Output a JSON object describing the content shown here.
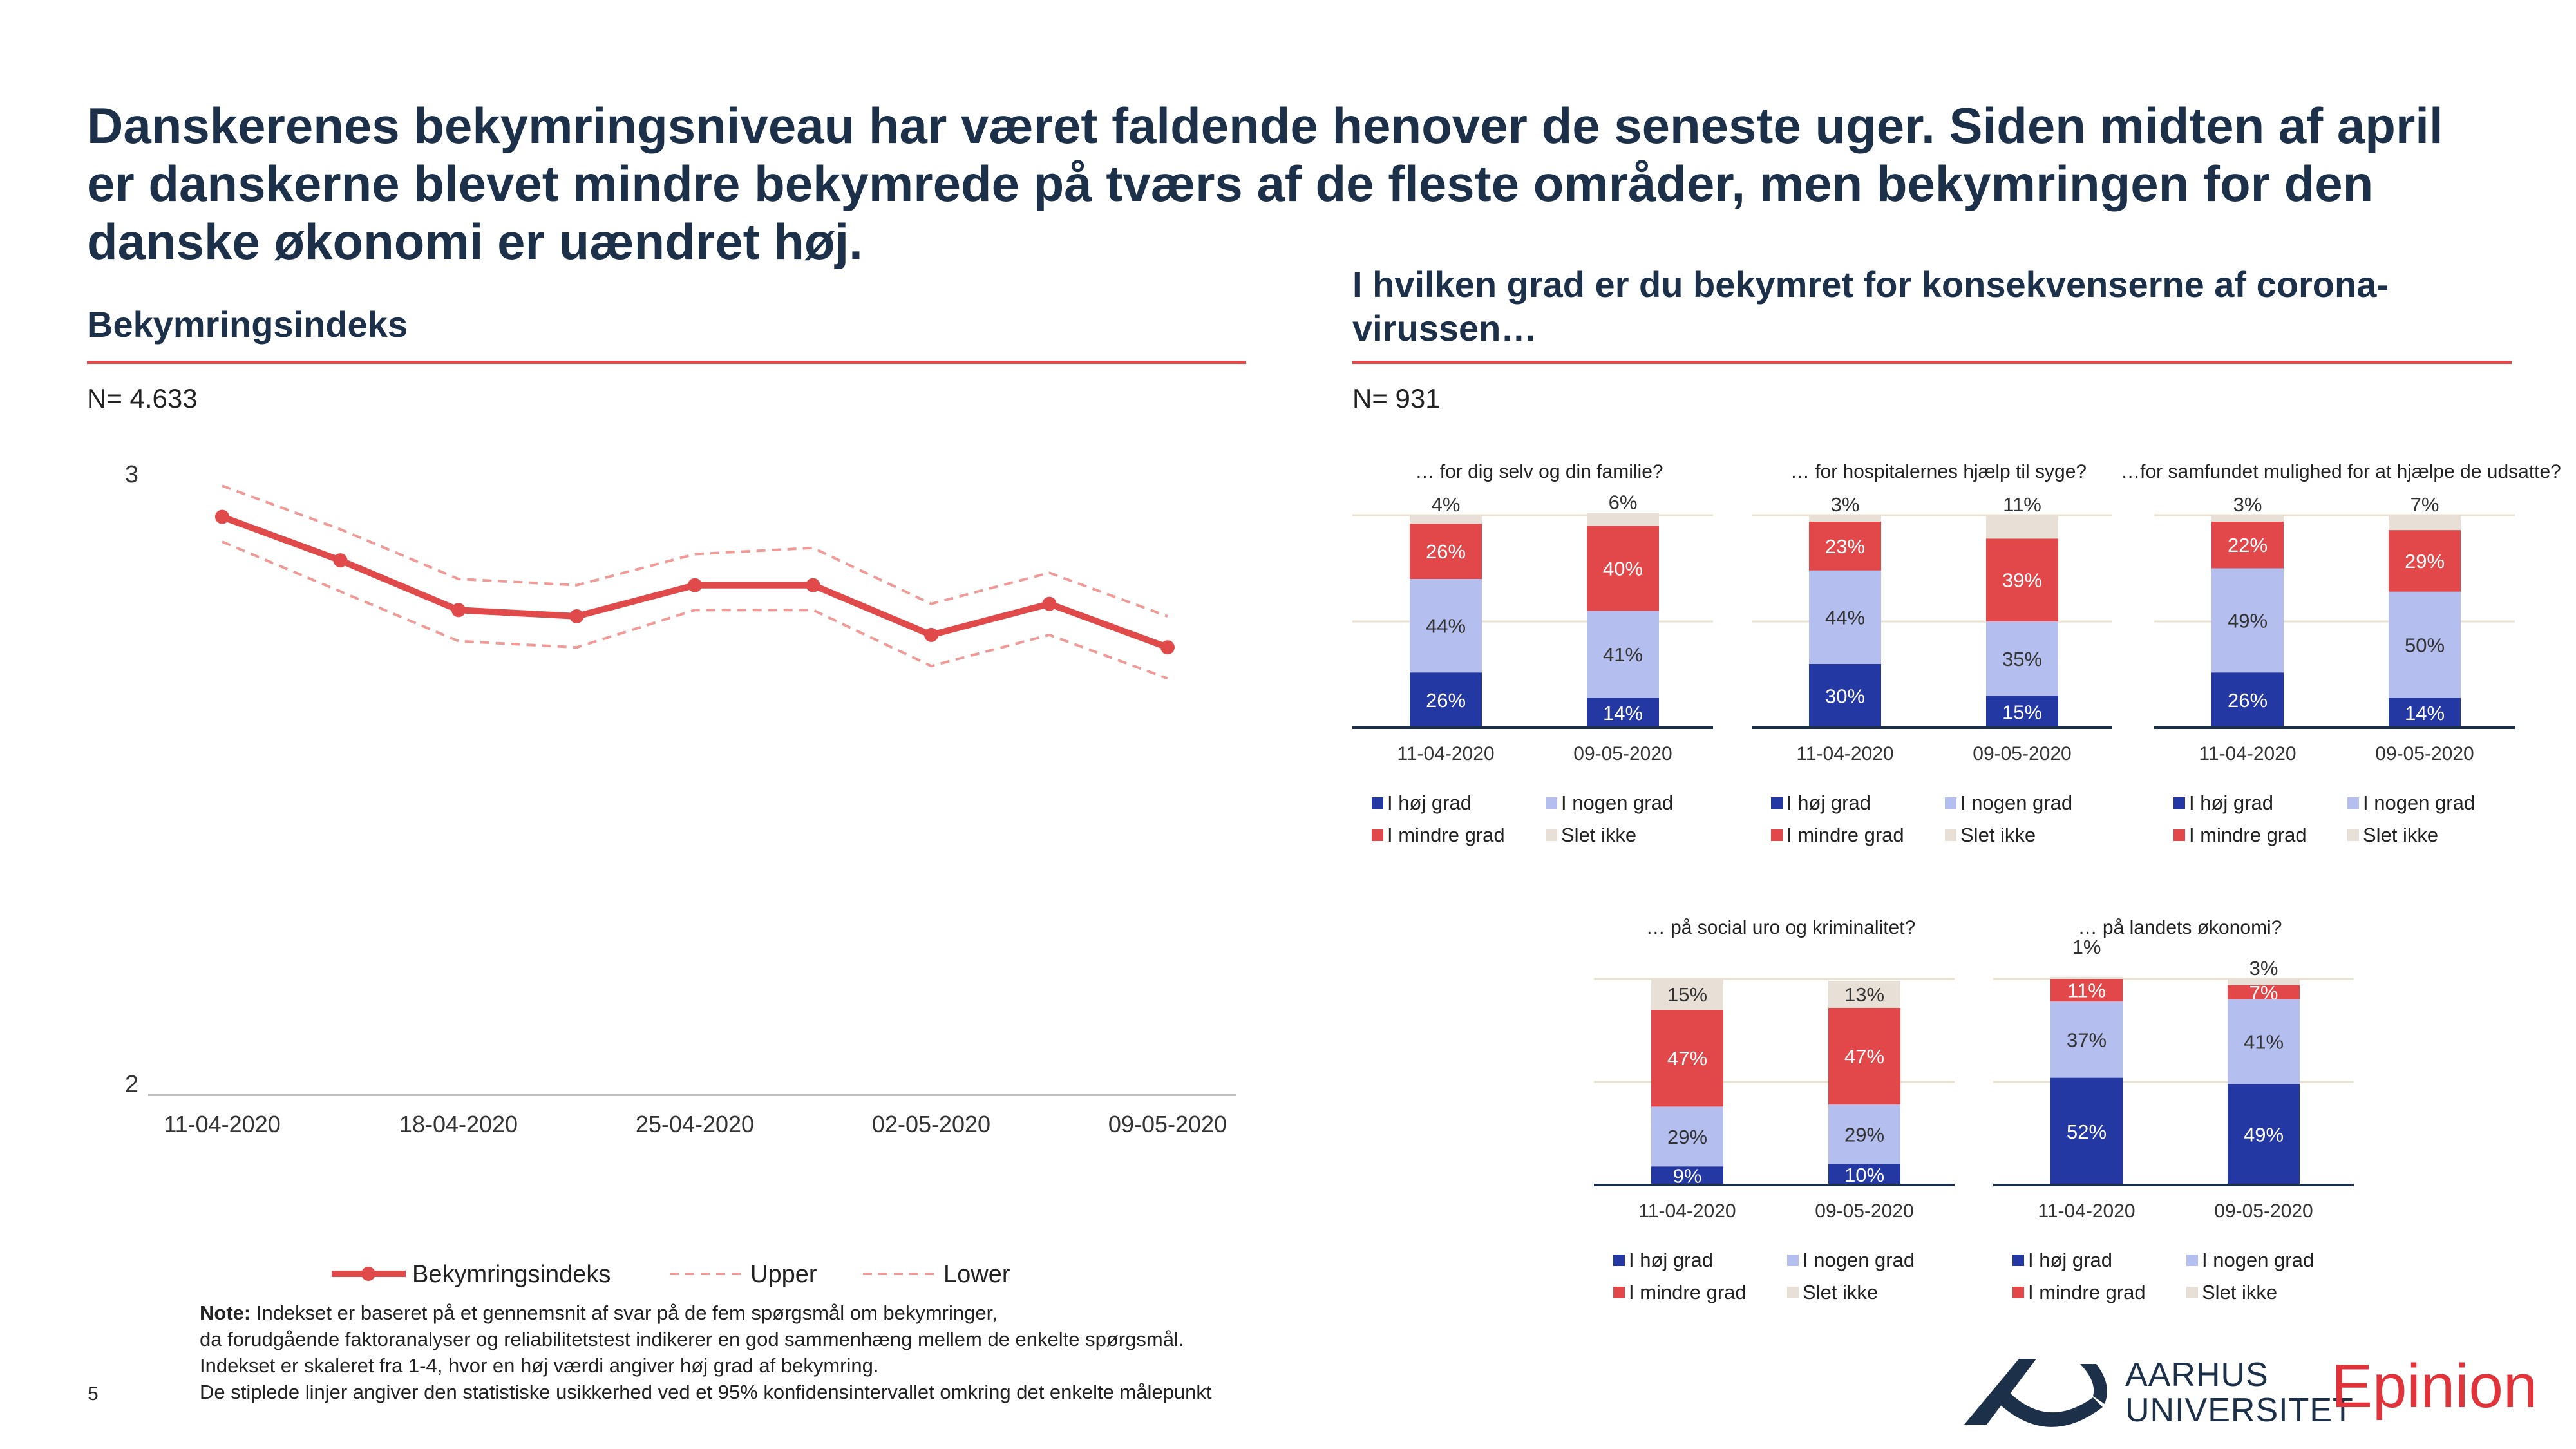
{
  "title": "Danskerenes bekymringsniveau har været faldende henover de seneste uger. Siden midten af april er danskerne blevet mindre bekymrede på tværs af de fleste områder, men bekymringen for den danske økonomi er uændret høj.",
  "left_panel": {
    "heading": "Bekymringsindeks",
    "n_label": "N= 4.633"
  },
  "right_panel": {
    "heading": "I hvilken grad er du bekymret for konsekvenserne af corona-virussen…",
    "n_label": "N= 931"
  },
  "colors": {
    "accent_red": "#e04a4a",
    "heading_navy": "#1c3049",
    "hoej_grad": "#2438a3",
    "nogen_grad": "#b4bff0",
    "mindre_grad": "#e2474a",
    "slet_ikke": "#e8e0d6"
  },
  "chart_data": [
    {
      "type": "line",
      "title": "Bekymringsindeks",
      "x": [
        "11-04-2020",
        "14-04-2020",
        "18-04-2020",
        "21-04-2020",
        "25-04-2020",
        "28-04-2020",
        "02-05-2020",
        "05-05-2020",
        "09-05-2020"
      ],
      "x_tick_labels": [
        "11-04-2020",
        "18-04-2020",
        "25-04-2020",
        "02-05-2020",
        "09-05-2020"
      ],
      "series": [
        {
          "name": "Bekymringsindeks",
          "values": [
            2.93,
            2.86,
            2.78,
            2.77,
            2.82,
            2.82,
            2.74,
            2.79,
            2.72
          ],
          "style": "solid-with-markers"
        },
        {
          "name": "Upper",
          "values": [
            2.98,
            2.91,
            2.83,
            2.82,
            2.87,
            2.88,
            2.79,
            2.84,
            2.77
          ],
          "style": "dashed"
        },
        {
          "name": "Lower",
          "values": [
            2.89,
            2.81,
            2.73,
            2.72,
            2.78,
            2.78,
            2.69,
            2.74,
            2.67
          ],
          "style": "dashed"
        }
      ],
      "ylim": [
        2,
        3
      ],
      "y_ticks": [
        "3",
        "2"
      ],
      "legend": "bottom"
    },
    {
      "type": "bar",
      "stacked": true,
      "title": "… for dig selv og din familie?",
      "categories": [
        "11-04-2020",
        "09-05-2020"
      ],
      "series": [
        {
          "name": "I høj grad",
          "values": [
            26,
            14
          ]
        },
        {
          "name": "I nogen grad",
          "values": [
            44,
            41
          ]
        },
        {
          "name": "I mindre grad",
          "values": [
            26,
            40
          ]
        },
        {
          "name": "Slet ikke",
          "values": [
            4,
            6
          ]
        }
      ],
      "legend": "bottom"
    },
    {
      "type": "bar",
      "stacked": true,
      "title": "… for hospitalernes hjælp til syge?",
      "categories": [
        "11-04-2020",
        "09-05-2020"
      ],
      "series": [
        {
          "name": "I høj grad",
          "values": [
            30,
            15
          ]
        },
        {
          "name": "I nogen grad",
          "values": [
            44,
            35
          ]
        },
        {
          "name": "I mindre grad",
          "values": [
            23,
            39
          ]
        },
        {
          "name": "Slet ikke",
          "values": [
            3,
            11
          ]
        }
      ],
      "legend": "bottom"
    },
    {
      "type": "bar",
      "stacked": true,
      "title": "…for samfundet mulighed for at hjælpe de udsatte?",
      "categories": [
        "11-04-2020",
        "09-05-2020"
      ],
      "series": [
        {
          "name": "I høj grad",
          "values": [
            26,
            14
          ]
        },
        {
          "name": "I nogen grad",
          "values": [
            49,
            50
          ]
        },
        {
          "name": "I mindre grad",
          "values": [
            22,
            29
          ]
        },
        {
          "name": "Slet ikke",
          "values": [
            3,
            7
          ]
        }
      ],
      "legend": "bottom"
    },
    {
      "type": "bar",
      "stacked": true,
      "title": "… på social uro og kriminalitet?",
      "categories": [
        "11-04-2020",
        "09-05-2020"
      ],
      "series": [
        {
          "name": "I høj grad",
          "values": [
            9,
            10
          ]
        },
        {
          "name": "I nogen grad",
          "values": [
            29,
            29
          ]
        },
        {
          "name": "I mindre grad",
          "values": [
            47,
            47
          ]
        },
        {
          "name": "Slet ikke",
          "values": [
            15,
            13
          ]
        }
      ],
      "legend": "bottom"
    },
    {
      "type": "bar",
      "stacked": true,
      "title": "… på landets økonomi?",
      "categories": [
        "11-04-2020",
        "09-05-2020"
      ],
      "series": [
        {
          "name": "I høj grad",
          "values": [
            52,
            49
          ]
        },
        {
          "name": "I nogen grad",
          "values": [
            37,
            41
          ]
        },
        {
          "name": "I mindre grad",
          "values": [
            11,
            7
          ]
        },
        {
          "name": "Slet ikke",
          "values": [
            1,
            3
          ]
        }
      ],
      "legend": "bottom"
    }
  ],
  "note": {
    "label": "Note:",
    "line1": "Indekset er baseret på et gennemsnit af svar på de fem spørgsmål om bekymringer,",
    "line2": "da forudgående faktoranalyser og reliabilitetstest indikerer en god sammenhæng mellem de enkelte spørgsmål.",
    "line3": "Indekset er skaleret fra 1-4, hvor en høj værdi angiver høj grad af bekymring.",
    "line4": "De stiplede linjer angiver den statistiske usikkerhed ved et 95% konfidensintervallet omkring det enkelte målepunkt"
  },
  "page_number": "5",
  "logos": {
    "university_line1": "AARHUS",
    "university_line2": "UNIVERSITET",
    "company": "Epinion"
  }
}
